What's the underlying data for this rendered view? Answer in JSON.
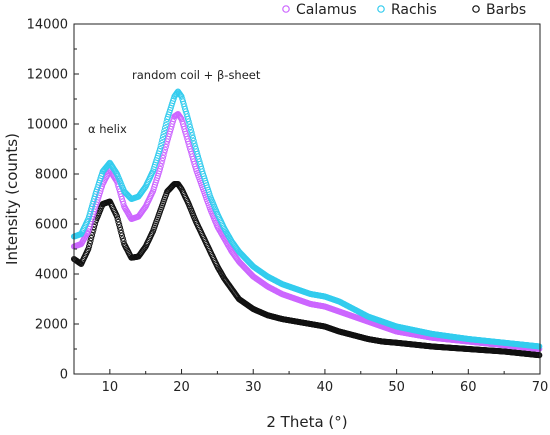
{
  "chart_data": {
    "type": "scatter",
    "xlabel": "2 Theta (°)",
    "ylabel": "Intensity (counts)",
    "xlim": [
      5,
      70
    ],
    "ylim": [
      0,
      14000
    ],
    "x_ticks": [
      "10",
      "20",
      "30",
      "40",
      "50",
      "60",
      "70"
    ],
    "y_ticks": [
      "0",
      "2000",
      "4000",
      "6000",
      "8000",
      "10000",
      "12000",
      "14000"
    ],
    "legend_position": "top-right",
    "annotations": [
      "random coil + β-sheet",
      "α helix"
    ],
    "series": [
      {
        "name": "Calamus",
        "color": "#cc66ff",
        "x": [
          5,
          6,
          7,
          8,
          9,
          10,
          11,
          12,
          13,
          14,
          15,
          16,
          17,
          18,
          19,
          19.5,
          20,
          21,
          22,
          23,
          24,
          25,
          26,
          27,
          28,
          30,
          32,
          34,
          36,
          38,
          40,
          42,
          44,
          46,
          48,
          50,
          55,
          60,
          65,
          70
        ],
        "y": [
          5100,
          5200,
          5700,
          6700,
          7600,
          8150,
          7700,
          6700,
          6200,
          6300,
          6700,
          7300,
          8200,
          9300,
          10300,
          10400,
          10200,
          9200,
          8200,
          7400,
          6600,
          5900,
          5400,
          4900,
          4500,
          3900,
          3500,
          3200,
          3000,
          2800,
          2700,
          2500,
          2300,
          2100,
          1900,
          1700,
          1450,
          1300,
          1150,
          1000
        ]
      },
      {
        "name": "Rachis",
        "color": "#33ccee",
        "x": [
          5,
          6,
          7,
          8,
          9,
          10,
          11,
          12,
          13,
          14,
          15,
          16,
          17,
          18,
          19,
          19.5,
          20,
          21,
          22,
          23,
          24,
          25,
          26,
          27,
          28,
          30,
          32,
          34,
          36,
          38,
          40,
          42,
          44,
          46,
          48,
          50,
          55,
          60,
          65,
          70
        ],
        "y": [
          5500,
          5600,
          6200,
          7200,
          8100,
          8450,
          8000,
          7300,
          7000,
          7100,
          7500,
          8100,
          9000,
          10200,
          11100,
          11300,
          11100,
          10100,
          9000,
          8000,
          7100,
          6400,
          5800,
          5300,
          4900,
          4300,
          3900,
          3600,
          3400,
          3200,
          3100,
          2900,
          2600,
          2300,
          2100,
          1900,
          1600,
          1400,
          1250,
          1100
        ]
      },
      {
        "name": "Barbs",
        "color": "#111111",
        "x": [
          5,
          6,
          7,
          8,
          9,
          10,
          11,
          12,
          13,
          14,
          15,
          16,
          17,
          18,
          19,
          19.5,
          20,
          21,
          22,
          23,
          24,
          25,
          26,
          27,
          28,
          30,
          32,
          34,
          36,
          38,
          40,
          42,
          44,
          46,
          48,
          50,
          55,
          60,
          65,
          70
        ],
        "y": [
          4600,
          4400,
          5000,
          6100,
          6800,
          6900,
          6300,
          5200,
          4650,
          4700,
          5100,
          5700,
          6500,
          7300,
          7600,
          7600,
          7400,
          6800,
          6100,
          5500,
          4900,
          4300,
          3800,
          3400,
          3000,
          2600,
          2350,
          2200,
          2100,
          2000,
          1900,
          1700,
          1550,
          1400,
          1300,
          1250,
          1100,
          1000,
          900,
          750
        ]
      }
    ]
  }
}
